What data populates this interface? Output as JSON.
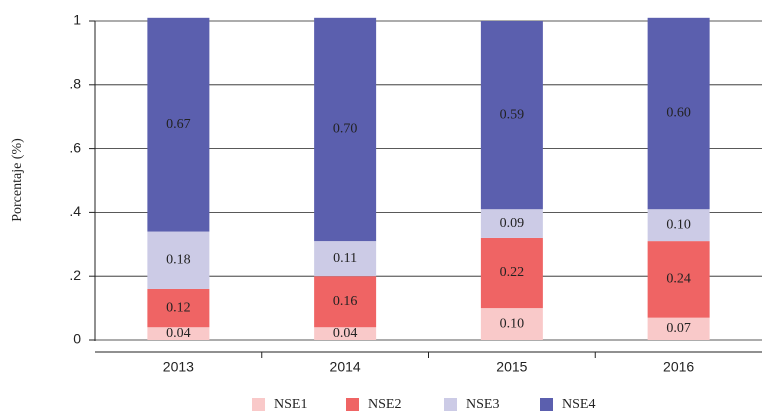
{
  "chart_data": {
    "type": "stacked_bar",
    "y_label": "Porcentaje (%)",
    "categories": [
      "2013",
      "2014",
      "2015",
      "2016"
    ],
    "series": [
      {
        "name": "NSE1",
        "color": "#f9c9c9",
        "values": [
          0.04,
          0.04,
          0.1,
          0.07
        ],
        "value_labels": [
          "0.04",
          "0.04",
          "0.10",
          "0.07"
        ]
      },
      {
        "name": "NSE2",
        "color": "#ef6464",
        "values": [
          0.12,
          0.16,
          0.22,
          0.24
        ],
        "value_labels": [
          "0.12",
          "0.16",
          "0.22",
          "0.24"
        ]
      },
      {
        "name": "NSE3",
        "color": "#cccbe6",
        "values": [
          0.18,
          0.11,
          0.09,
          0.1
        ],
        "value_labels": [
          "0.18",
          "0.11",
          "0.09",
          "0.10"
        ]
      },
      {
        "name": "NSE4",
        "color": "#5b5fae",
        "values": [
          0.67,
          0.7,
          0.59,
          0.6
        ],
        "value_labels": [
          "0.67",
          "0.70",
          "0.59",
          "0.60"
        ]
      }
    ],
    "ylim": [
      0,
      1
    ],
    "yticks": [
      0,
      {
        "value": 0.2,
        "label": ".2"
      },
      {
        "value": 0.4,
        "label": ".4"
      },
      {
        "value": 0.6,
        "label": ".6"
      },
      {
        "value": 0.8,
        "label": ".8"
      },
      1
    ],
    "grid": true,
    "legend": "bottom"
  }
}
